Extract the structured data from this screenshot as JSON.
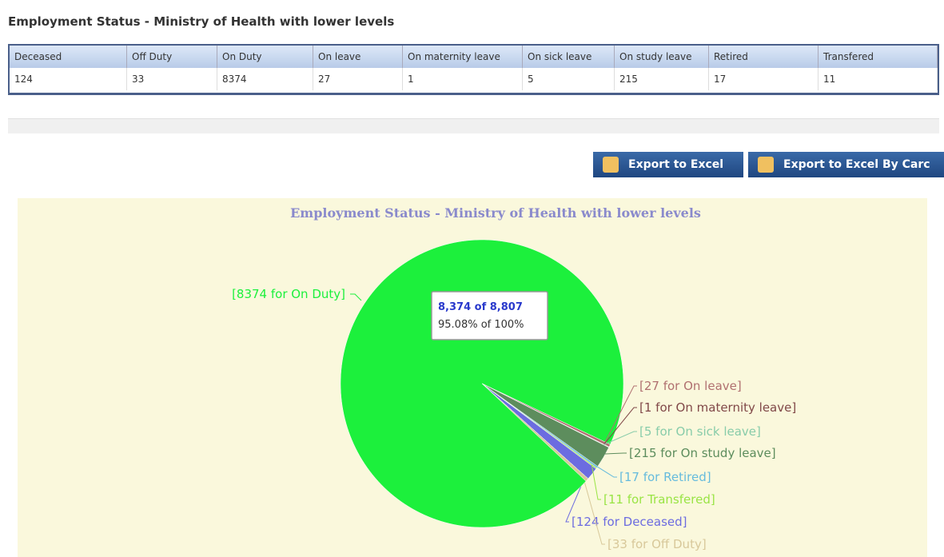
{
  "header": {
    "title": "Employment Status - Ministry of Health with lower levels"
  },
  "table": {
    "columns": [
      "Deceased",
      "Off Duty",
      "On Duty",
      "On leave",
      "On maternity leave",
      "On sick leave",
      "On study leave",
      "Retired",
      "Transfered"
    ],
    "rows": [
      [
        "124",
        "33",
        "8374",
        "27",
        "1",
        "5",
        "215",
        "17",
        "11"
      ]
    ]
  },
  "buttons": [
    "Export to Excel",
    "Export to Excel By Carc"
  ],
  "chart_data": {
    "type": "pie",
    "title": "Employment Status - Ministry of Health with lower levels",
    "categories": [
      "Deceased",
      "Off Duty",
      "On Duty",
      "On leave",
      "On maternity leave",
      "On sick leave",
      "On study leave",
      "Retired",
      "Transfered"
    ],
    "values": [
      124,
      33,
      8374,
      27,
      1,
      5,
      215,
      17,
      11
    ],
    "value_labels": [
      "[124 for Deceased]",
      "[33 for Off Duty]",
      "[8374 for On Duty]",
      "[27 for On leave]",
      "[1 for On maternity leave]",
      "[5 for On sick leave]",
      "[215 for On study leave]",
      "[17 for Retired]",
      "[11 for Transfered]"
    ],
    "colors": [
      "#6c6ce0",
      "#d8c89a",
      "#1cf03c",
      "#b07070",
      "#804848",
      "#88ccaa",
      "#5d8d5d",
      "#66bbdd",
      "#99e444"
    ],
    "tooltip": [
      "8,374 of 8,807",
      "95.08% of 100%"
    ]
  }
}
